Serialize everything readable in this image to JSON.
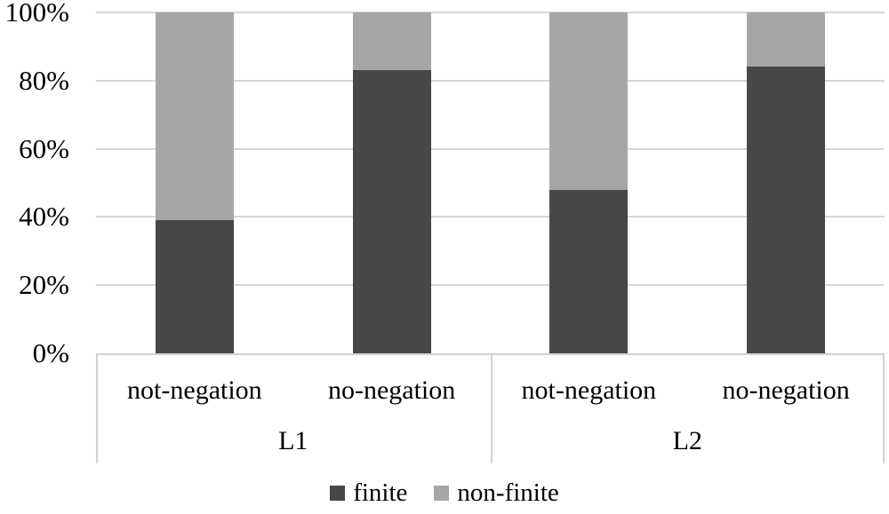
{
  "chart_data": {
    "type": "bar",
    "variant": "100-percent-stacked-column",
    "title": "",
    "xlabel": "",
    "ylabel": "",
    "groups": [
      {
        "label": "L1",
        "categories": [
          "not-negation",
          "no-negation"
        ]
      },
      {
        "label": "L2",
        "categories": [
          "not-negation",
          "no-negation"
        ]
      }
    ],
    "series": [
      {
        "name": "finite",
        "color": "#474747",
        "values": [
          39,
          83,
          48,
          84
        ]
      },
      {
        "name": "non-finite",
        "color": "#a6a6a6",
        "values": [
          61,
          17,
          52,
          16
        ]
      }
    ],
    "y_ticks": [
      "0%",
      "20%",
      "40%",
      "60%",
      "80%",
      "100%"
    ],
    "ylim": [
      0,
      100
    ],
    "grid": true,
    "grid_color": "#d6d6d6",
    "axis_color": "#d2d2d2",
    "legend_position": "bottom",
    "legend": [
      "finite",
      "non-finite"
    ]
  }
}
